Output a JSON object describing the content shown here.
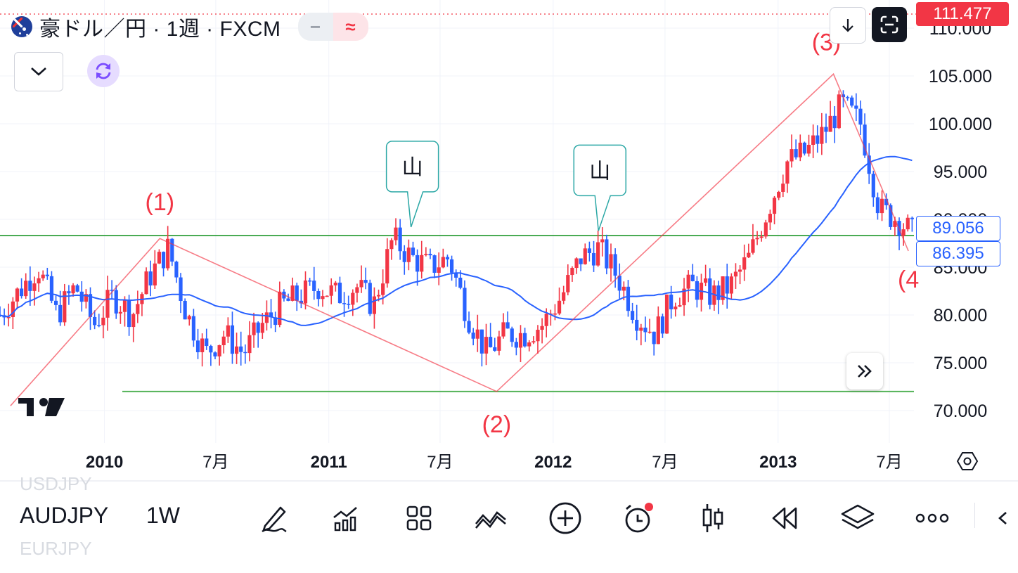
{
  "header": {
    "title": "豪ドル／円 · 1週 · FXCM",
    "pill_left": "−",
    "pill_right": "≈"
  },
  "price_axis": {
    "labels": [
      "110.000",
      "105.000",
      "100.000",
      "95.000",
      "90.000",
      "85.000",
      "80.000",
      "75.000",
      "70.000"
    ],
    "current_price": "111.477",
    "current_price_color": "#f23645",
    "tag_a": "89.056",
    "tag_b": "86.395",
    "tag_color": "#2962ff"
  },
  "time_axis": {
    "labels": [
      {
        "text": "2010",
        "bold": true
      },
      {
        "text": "7月",
        "bold": false
      },
      {
        "text": "2011",
        "bold": true
      },
      {
        "text": "7月",
        "bold": false
      },
      {
        "text": "2012",
        "bold": true
      },
      {
        "text": "7月",
        "bold": false
      },
      {
        "text": "2013",
        "bold": true
      },
      {
        "text": "7月",
        "bold": false
      }
    ]
  },
  "annotations": {
    "wave_labels": [
      "(1)",
      "(2)",
      "(3)",
      "(4"
    ],
    "peak_label": "山",
    "wave_color": "#f23645"
  },
  "chart_data": {
    "type": "candlestick",
    "symbol": "AUDJPY",
    "interval": "1W",
    "ylim": [
      67,
      112
    ],
    "up_color": "#f23645",
    "down_color": "#2962ff",
    "ma_color": "#2962ff",
    "hlines": [
      {
        "value": 88.3,
        "color": "#2e9e3a"
      },
      {
        "value": 72.0,
        "color": "#4caf50"
      }
    ],
    "wave_points": [
      {
        "label": "start",
        "date": "2009-08",
        "value": 70.5
      },
      {
        "label": "(1)",
        "date": "2010-04",
        "value": 88.0
      },
      {
        "label": "(2)",
        "date": "2011-10",
        "value": 72.0
      },
      {
        "label": "(3)",
        "date": "2013-04",
        "value": 105.2
      },
      {
        "label": "(4)",
        "date": "2013-08",
        "value": 86.7
      }
    ],
    "price_anchors": [
      [
        "2009-09",
        85
      ],
      [
        "2009-10",
        80
      ],
      [
        "2009-11",
        83
      ],
      [
        "2009-12",
        79
      ],
      [
        "2010-01",
        82
      ],
      [
        "2010-02",
        80
      ],
      [
        "2010-03",
        84
      ],
      [
        "2010-04",
        87
      ],
      [
        "2010-05",
        80
      ],
      [
        "2010-06",
        76
      ],
      [
        "2010-07",
        78
      ],
      [
        "2010-08",
        76
      ],
      [
        "2010-09",
        79
      ],
      [
        "2010-10",
        81
      ],
      [
        "2010-11",
        82
      ],
      [
        "2010-12",
        83
      ],
      [
        "2011-01",
        82
      ],
      [
        "2011-02",
        83
      ],
      [
        "2011-03",
        81
      ],
      [
        "2011-04",
        88
      ],
      [
        "2011-05",
        86
      ],
      [
        "2011-06",
        85
      ],
      [
        "2011-07",
        86
      ],
      [
        "2011-08",
        80
      ],
      [
        "2011-09",
        76
      ],
      [
        "2011-10",
        78
      ],
      [
        "2011-11",
        78
      ],
      [
        "2011-12",
        79
      ],
      [
        "2012-01",
        82
      ],
      [
        "2012-02",
        86
      ],
      [
        "2012-03",
        87
      ],
      [
        "2012-04",
        84
      ],
      [
        "2012-05",
        80
      ],
      [
        "2012-06",
        78
      ],
      [
        "2012-07",
        82
      ],
      [
        "2012-08",
        83
      ],
      [
        "2012-09",
        82
      ],
      [
        "2012-10",
        83
      ],
      [
        "2012-11",
        86
      ],
      [
        "2012-12",
        91
      ],
      [
        "2013-01",
        96
      ],
      [
        "2013-02",
        97
      ],
      [
        "2013-03",
        99
      ],
      [
        "2013-04",
        102
      ],
      [
        "2013-05",
        100
      ],
      [
        "2013-06",
        91
      ],
      [
        "2013-07",
        90
      ],
      [
        "2013-08",
        88
      ]
    ]
  },
  "bottom_bar": {
    "ghost_top": "USDJPY",
    "symbol": "AUDJPY",
    "interval": "1W",
    "ghost_bottom": "EURJPY"
  }
}
